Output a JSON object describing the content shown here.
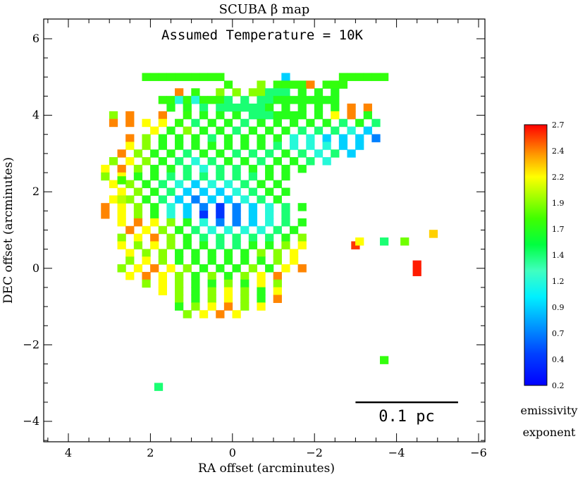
{
  "chart_data": {
    "type": "heatmap",
    "title": "SCUBA β map",
    "subtitle": "Assumed Temperature = 10K",
    "xlabel": "RA offset (arcminutes)",
    "ylabel": "DEC offset (arcminutes)",
    "xlim": [
      4.7,
      -6.4
    ],
    "ylim": [
      -4.6,
      6.1
    ],
    "x_ticks": [
      "4",
      "2",
      "0",
      "−2",
      "−4",
      "−6"
    ],
    "x_tick_values": [
      4,
      2,
      0,
      -2,
      -4,
      -6
    ],
    "y_ticks": [
      "6",
      "4",
      "2",
      "0",
      "−2",
      "−4"
    ],
    "y_tick_values": [
      6,
      4,
      2,
      0,
      -2,
      -4
    ],
    "scale_bar": {
      "label": "0.1 pc",
      "from_ra": -3.0,
      "to_ra": -5.5,
      "dec": -3.48
    },
    "colorbar": {
      "range": [
        0.2,
        2.7
      ],
      "tick_labels": [
        "2.7",
        "2.4",
        "2.2",
        "1.9",
        "1.7",
        "1.4",
        "1.2",
        "0.9",
        "0.7",
        "0.4",
        "0.2"
      ],
      "tick_values": [
        2.7,
        2.45,
        2.2,
        1.95,
        1.7,
        1.45,
        1.2,
        0.95,
        0.7,
        0.45,
        0.2
      ],
      "label": [
        "emissivity",
        "exponent"
      ]
    },
    "pixel_size_arcmin": 0.2,
    "grid_origin": {
      "ra": 3.3,
      "dec": 5.0
    },
    "rows": [
      "      ..........       3      ...... ",
      "                .   7 ....9 ...      ",
      "          9 .  7 7 77555 6 6 6    ",
      "        ..4.4...5 5 5566666666   ",
      "         6 6 5 5555556 6 6 6 6 9 9 ",
      "  7 9   9  . 6 6 6 5556666 6 8 9 6 ",
      "  9 9 8 8 . 5 6 6 5 6 6 6 6 6 5 6 5 ",
      "       8 6 7 6 6 5 6 6 6 5 5 5 4 3 ",
      "    9 7 6 6 6 5 6 6 6 6 4 4 3 3 3 2",
      "    8 7 6 6 6 6 6 6 6 5 4 4 4 3 3  ",
      "   9 7 6 6 5 6 6 5 5 5 6 5 4 5 3 ",
      "  7 8 7 6 5 4 5 6 6 5 6 6 5 4 ",
      " 8 9 7 6 6 5 4 5 5 6 6 6 6 ",
      " 7 8 6 6 5 5 5 5 5 5 6 6 ",
      "  8 7 6 5 4 3 4 4 5 6 6 ",
      "   8 7 6 5 3 3 3 4 5 6 6",
      "  8 7 6 5 3 2 3 3 4 5 6",
      " 9 8 7 6 4 3 2 1 2 3 4 5 6",
      " 9 8 7 6 4 3 1 1 2 3 4 5",
      "   8 9 8 7 6 4 2 2 3 4 5 6",
      "    9 8 7 6 5 4 4 4 4 5 6",
      "   7 8 9 7 6 5 5 5 5 5 6 7",
      "   8 7 8 7 6 6 5 5 6 6 7 8",
      "    8 7 7 6 6 6 6 6 7 7 8",
      "    7 8 7 6 6 6 6 6 6 7 8",
      "   7 8 9 8 7 6 6 6 7 6 8 9",
      "    8 9 8 7 6 7 6 7 8 9",
      "      7 8 7 6 6 7 6 8 7",
      "        8 7 6 7 8 7 6 8",
      "          7 6 7 8 7 6 9",
      "          6 7 8 9 7 8",
      "           7 8 9 8"
    ],
    "cells": []
  }
}
